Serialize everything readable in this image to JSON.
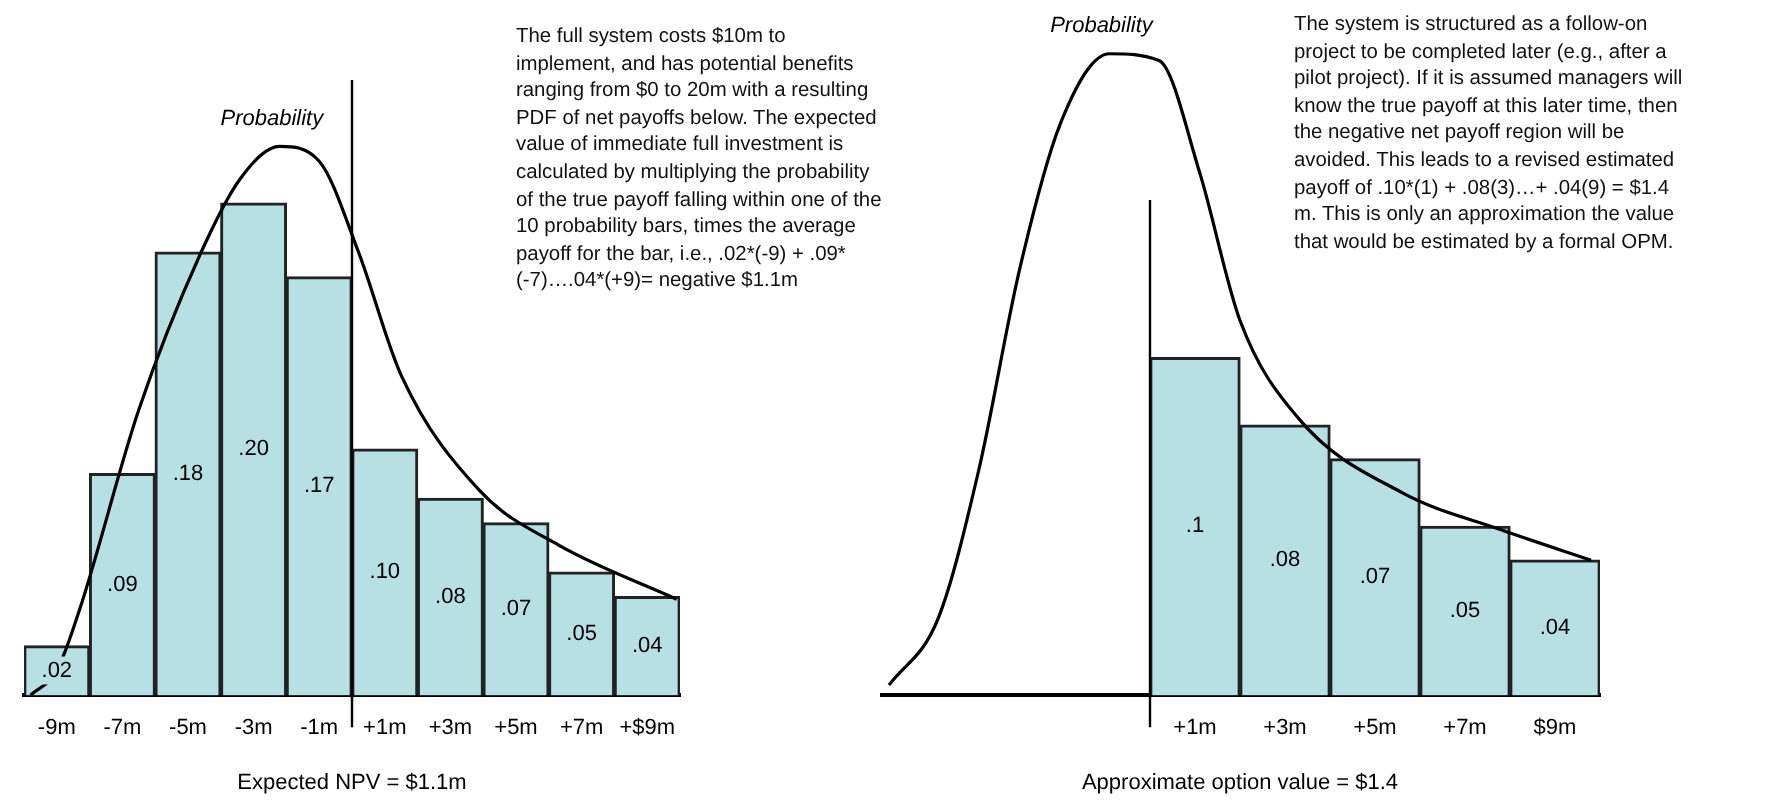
{
  "chart_data": [
    {
      "type": "bar",
      "xlabel": "Expected NPV = $1.1m",
      "annotations": [
        "The full system costs $10m to implement, and has potential benefits ranging from $0 to 20m with a resulting PDF of net payoffs below. The expected value of immediate full investment is calculated by multiplying the probability of the true payoff falling within one of the 10 probability bars, times the average payoff for the bar, i.e., .02*(-9) + .09*(-7)….04*(+9)= negative $1.1m"
      ],
      "x": [
        -9,
        -7,
        -5,
        -3,
        -1,
        1,
        3,
        5,
        7,
        9
      ],
      "xlim": [
        -10,
        10
      ],
      "xticks": [
        {
          "value": -9,
          "label": "-9m"
        },
        {
          "value": -7,
          "label": "-7m"
        },
        {
          "value": -5,
          "label": "-5m"
        },
        {
          "value": -3,
          "label": "-3m"
        },
        {
          "value": -1,
          "label": "-1m"
        },
        {
          "value": 1,
          "label": "+1m"
        },
        {
          "value": 3,
          "label": "+3m"
        },
        {
          "value": 5,
          "label": "+5m"
        },
        {
          "value": 7,
          "label": "+7m"
        },
        {
          "value": 9,
          "label": "+$9m"
        }
      ],
      "tick_labels": "x",
      "grid": false,
      "legend": false,
      "ref_lines": [
        {
          "axis": "x",
          "value": 0,
          "color": "#000000"
        }
      ],
      "series": [
        {
          "color": "#b7e0e4",
          "values": [
            0.02,
            0.09,
            0.18,
            0.2,
            0.17,
            0.1,
            0.08,
            0.07,
            0.05,
            0.04
          ],
          "value_labels": [
            ".02",
            ".09",
            ".18",
            ".20",
            ".17",
            ".10",
            ".08",
            ".07",
            ".05",
            ".04"
          ]
        },
        {
          "type": "line",
          "name": "Probability",
          "color": "#000000",
          "x": [
            -9.8,
            -9,
            -8.3,
            -6.5,
            -4.6,
            -3.4,
            -2.2,
            -1,
            0.2,
            1.5,
            3.9,
            6.3,
            9.9
          ],
          "values": [
            0,
            0.01,
            0.035,
            0.116,
            0.18,
            0.21,
            0.223,
            0.217,
            0.18,
            0.13,
            0.083,
            0.061,
            0.039
          ]
        }
      ]
    },
    {
      "type": "bar",
      "xlabel": "Approximate option value = $1.4",
      "annotations": [
        "The system is structured as a follow-on project to be completed later (e.g., after a pilot project). If it is assumed managers will know the true payoff at this later time, then the negative net payoff region will be avoided. This leads to a revised estimated payoff of .10*(1) + .08(3)…+ .04(9)  = $1.4 m. This is only an approximation the value that would be estimated by a formal OPM."
      ],
      "x": [
        1,
        3,
        5,
        7,
        9
      ],
      "xlim": [
        -6,
        10
      ],
      "xticks": [
        {
          "value": 1,
          "label": "+1m"
        },
        {
          "value": 3,
          "label": "+3m"
        },
        {
          "value": 5,
          "label": "+5m"
        },
        {
          "value": 7,
          "label": "+7m"
        },
        {
          "value": 9,
          "label": "$9m"
        }
      ],
      "tick_labels": "x",
      "grid": false,
      "legend": false,
      "ref_lines": [
        {
          "axis": "x",
          "value": 0,
          "color": "#000000"
        }
      ],
      "series": [
        {
          "color": "#b7e0e4",
          "values": [
            0.1,
            0.08,
            0.07,
            0.05,
            0.04
          ],
          "value_labels": [
            ".1",
            ".08",
            ".07",
            ".05",
            ".04"
          ]
        },
        {
          "type": "line",
          "name": "Probability",
          "color": "#000000",
          "x": [
            -5.8,
            -4.7,
            -3.8,
            -2.9,
            -2,
            -0.9,
            0.2,
            1.1,
            2,
            3.3,
            5.6,
            7.8,
            9.8
          ],
          "values": [
            0.003,
            0.023,
            0.067,
            0.126,
            0.169,
            0.19,
            0.188,
            0.155,
            0.111,
            0.082,
            0.06,
            0.049,
            0.04
          ]
        }
      ]
    }
  ]
}
